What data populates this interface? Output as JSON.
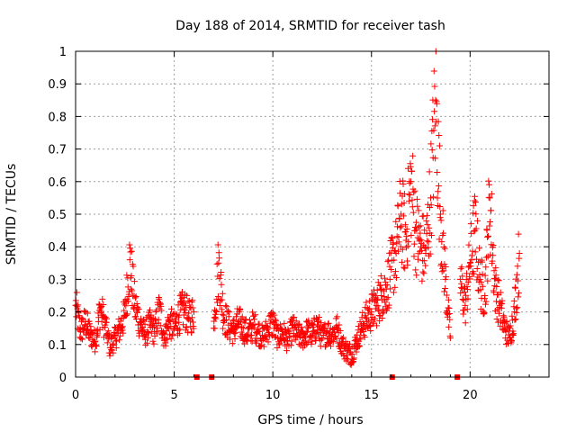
{
  "chart_data": {
    "type": "scatter",
    "title": "Day 188 of 2014, SRMTID for receiver tash",
    "xlabel": "GPS time / hours",
    "ylabel": "SRMTID / TECUs",
    "xlim": [
      0,
      24
    ],
    "ylim": [
      0,
      1
    ],
    "x_ticks": [
      "0",
      "5",
      "10",
      "15",
      "20"
    ],
    "y_ticks": [
      "0",
      "0.1",
      "0.2",
      "0.3",
      "0.4",
      "0.5",
      "0.6",
      "0.7",
      "0.8",
      "0.9",
      "1"
    ],
    "grid": true,
    "marker": "plus",
    "color": "#ff0000",
    "missing_data_markers_x": [
      6.15,
      6.9,
      16.05,
      19.35
    ],
    "series": [
      {
        "name": "SRMTID",
        "segments": [
          {
            "x": [
              0.0,
              0.25,
              0.5,
              0.75,
              1.0,
              1.25,
              1.5,
              1.75,
              2.0,
              2.25,
              2.5,
              2.75,
              3.0,
              3.25,
              3.5,
              3.75,
              4.0,
              4.25,
              4.5,
              4.75,
              5.0,
              5.25,
              5.5,
              5.75,
              6.0
            ],
            "y": [
              0.22,
              0.14,
              0.17,
              0.13,
              0.11,
              0.21,
              0.16,
              0.09,
              0.12,
              0.15,
              0.19,
              0.36,
              0.22,
              0.17,
              0.13,
              0.16,
              0.14,
              0.21,
              0.12,
              0.17,
              0.15,
              0.19,
              0.21,
              0.18,
              0.2
            ]
          },
          {
            "x": [
              7.0,
              7.25,
              7.5,
              7.75,
              8.0,
              8.25,
              8.5,
              8.75,
              9.0,
              9.25,
              9.5,
              9.75,
              10.0,
              10.25,
              10.5,
              10.75,
              11.0,
              11.25,
              11.5,
              11.75,
              12.0,
              12.25,
              12.5,
              12.75,
              13.0,
              13.25,
              13.5,
              13.75,
              14.0,
              14.25,
              14.5,
              14.75,
              15.0,
              15.25,
              15.5,
              15.75,
              16.0,
              16.25,
              16.5,
              16.75,
              17.0,
              17.25,
              17.5,
              17.75,
              18.0,
              18.25,
              18.5,
              18.75,
              19.0
            ],
            "y": [
              0.15,
              0.35,
              0.19,
              0.16,
              0.14,
              0.17,
              0.15,
              0.13,
              0.16,
              0.14,
              0.12,
              0.15,
              0.17,
              0.12,
              0.14,
              0.11,
              0.15,
              0.13,
              0.12,
              0.14,
              0.13,
              0.16,
              0.12,
              0.14,
              0.13,
              0.15,
              0.1,
              0.08,
              0.07,
              0.11,
              0.15,
              0.18,
              0.2,
              0.22,
              0.25,
              0.27,
              0.33,
              0.38,
              0.5,
              0.42,
              0.6,
              0.45,
              0.4,
              0.38,
              0.55,
              0.85,
              0.5,
              0.3,
              0.12
            ]
          },
          {
            "x": [
              19.5,
              19.75,
              20.0,
              20.25,
              20.5,
              20.75,
              21.0,
              21.25,
              21.5,
              21.75,
              22.0,
              22.25,
              22.5
            ],
            "y": [
              0.3,
              0.22,
              0.35,
              0.45,
              0.3,
              0.25,
              0.55,
              0.28,
              0.22,
              0.15,
              0.12,
              0.2,
              0.38
            ]
          }
        ]
      }
    ]
  }
}
